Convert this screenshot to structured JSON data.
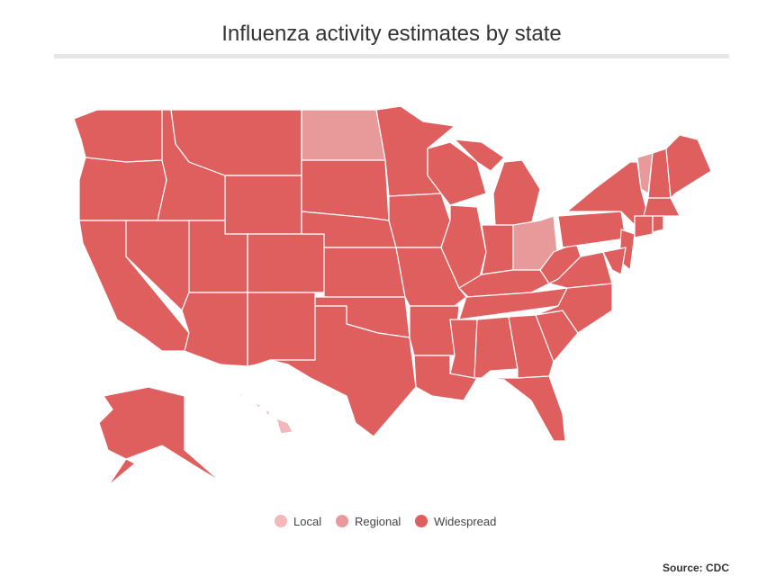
{
  "title": "Influenza activity estimates by state",
  "legend": [
    {
      "label": "Local",
      "color": "#f4b8b8"
    },
    {
      "label": "Regional",
      "color": "#e89a9a"
    },
    {
      "label": "Widespread",
      "color": "#df5f5f"
    }
  ],
  "source": "Source: CDC",
  "state_levels": [
    2,
    2,
    2,
    2,
    2,
    2,
    2,
    2,
    2,
    2,
    1,
    2,
    2,
    2,
    2,
    2,
    2,
    2,
    2,
    2,
    2,
    2,
    2,
    2,
    2,
    2,
    1,
    2,
    2,
    2,
    2,
    2,
    2,
    2,
    2,
    2,
    2,
    1,
    2,
    2,
    2,
    2,
    2,
    2,
    2,
    2,
    2,
    0,
    2
  ]
}
